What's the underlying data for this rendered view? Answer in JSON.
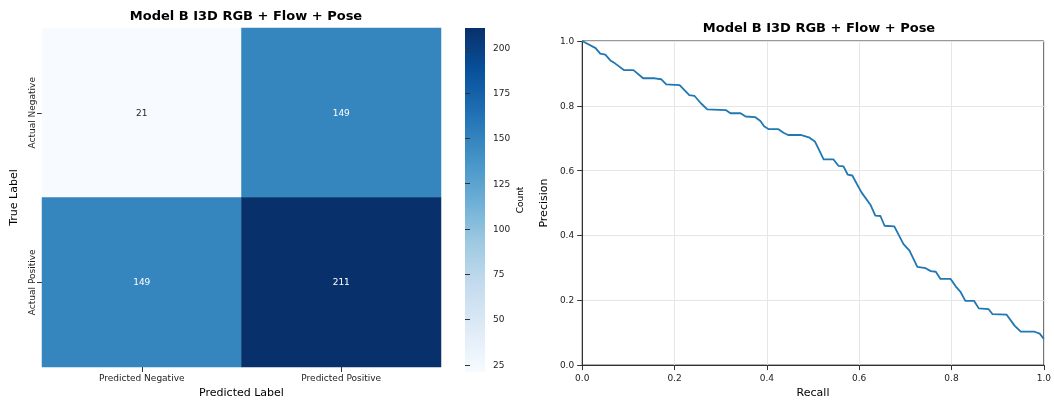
{
  "chart_data": [
    {
      "type": "heatmap",
      "title": "Model B I3D RGB + Flow + Pose",
      "xlabel": "Predicted Label",
      "ylabel": "True Label",
      "clabel": "Count",
      "categories": [
        "Predicted Negative",
        "Predicted Positive"
      ],
      "y_categories": [
        "Actual Negative",
        "Actual Positive"
      ],
      "cells": [
        [
          21,
          149
        ],
        [
          149,
          211
        ]
      ],
      "clim": [
        21,
        211
      ],
      "cticks": [
        25,
        50,
        75,
        100,
        125,
        150,
        175,
        200
      ],
      "data_labels": true
    },
    {
      "type": "line",
      "title": "Model B I3D RGB + Flow + Pose",
      "xlabel": "Recall",
      "ylabel": "Precision",
      "xlim": [
        0,
        1
      ],
      "ylim": [
        0,
        1
      ],
      "xticks": [
        {
          "value": 0,
          "label": "0.0"
        },
        {
          "value": 0.2,
          "label": "0.2"
        },
        {
          "value": 0.4,
          "label": "0.4"
        },
        {
          "value": 0.6,
          "label": "0.6"
        },
        {
          "value": 0.8,
          "label": "0.8"
        },
        {
          "value": 1,
          "label": "1.0"
        }
      ],
      "yticks": [
        {
          "value": 0,
          "label": "0.0"
        },
        {
          "value": 0.2,
          "label": "0.2"
        },
        {
          "value": 0.4,
          "label": "0.4"
        },
        {
          "value": 0.6,
          "label": "0.6"
        },
        {
          "value": 0.8,
          "label": "0.8"
        },
        {
          "value": 1,
          "label": "1.0"
        }
      ],
      "grid": true,
      "marker": "none",
      "line_style": "solid",
      "series": [
        {
          "color": "#1f77b4",
          "x": [
            0,
            0.029,
            0.039,
            0.05,
            0.061,
            0.071,
            0.091,
            0.111,
            0.132,
            0.157,
            0.171,
            0.182,
            0.211,
            0.232,
            0.243,
            0.257,
            0.271,
            0.311,
            0.321,
            0.343,
            0.354,
            0.375,
            0.386,
            0.394,
            0.404,
            0.425,
            0.436,
            0.446,
            0.473,
            0.491,
            0.504,
            0.523,
            0.544,
            0.555,
            0.566,
            0.575,
            0.585,
            0.605,
            0.625,
            0.635,
            0.646,
            0.655,
            0.676,
            0.696,
            0.709,
            0.726,
            0.744,
            0.755,
            0.766,
            0.776,
            0.798,
            0.809,
            0.819,
            0.83,
            0.849,
            0.859,
            0.88,
            0.889,
            0.919,
            0.937,
            0.95,
            0.98,
            0.991,
            1
          ],
          "values": [
            1,
            0.978,
            0.961,
            0.958,
            0.94,
            0.931,
            0.91,
            0.91,
            0.885,
            0.885,
            0.882,
            0.866,
            0.864,
            0.833,
            0.831,
            0.808,
            0.789,
            0.787,
            0.777,
            0.777,
            0.767,
            0.765,
            0.753,
            0.737,
            0.728,
            0.728,
            0.717,
            0.71,
            0.71,
            0.703,
            0.69,
            0.635,
            0.635,
            0.615,
            0.613,
            0.588,
            0.585,
            0.533,
            0.493,
            0.461,
            0.46,
            0.43,
            0.428,
            0.373,
            0.353,
            0.303,
            0.299,
            0.29,
            0.288,
            0.266,
            0.266,
            0.243,
            0.227,
            0.198,
            0.198,
            0.175,
            0.173,
            0.157,
            0.156,
            0.121,
            0.103,
            0.103,
            0.097,
            0.081
          ]
        }
      ]
    }
  ]
}
